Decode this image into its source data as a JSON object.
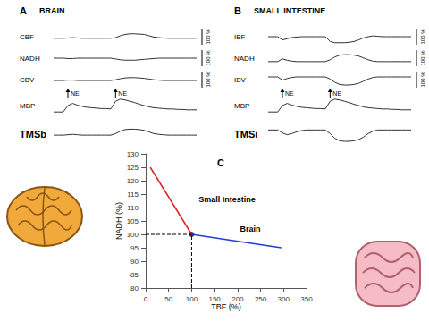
{
  "chart_data": [
    {
      "type": "line",
      "panel": "A",
      "title": "BRAIN",
      "tick_labels": false,
      "x": [
        0,
        1,
        2,
        3,
        4,
        5,
        6,
        7,
        8,
        9,
        10,
        11,
        12,
        13,
        14,
        15,
        16,
        17,
        18,
        19,
        20,
        21,
        22,
        23,
        24,
        25,
        26,
        27,
        28,
        29,
        30
      ],
      "xlim": [
        0,
        30
      ],
      "annotations": [
        {
          "text": "NE",
          "x": 3
        },
        {
          "text": "NE",
          "x": 13
        }
      ],
      "series": [
        {
          "name": "CBF",
          "color": "#333333",
          "scale_label": "100 %",
          "ylim": [
            -20,
            30
          ],
          "values": [
            0,
            0,
            0,
            1,
            2,
            1,
            0,
            0,
            0,
            0,
            0,
            0,
            0,
            2,
            8,
            12,
            14,
            14,
            13,
            12,
            8,
            4,
            2,
            1,
            0,
            0,
            0,
            0,
            0,
            0,
            0
          ]
        },
        {
          "name": "NADH",
          "color": "#333333",
          "scale_label": "100 %",
          "ylim": [
            -20,
            20
          ],
          "values": [
            0,
            0,
            0,
            -1,
            -1,
            0,
            0,
            0,
            0,
            0,
            0,
            0,
            0,
            -2,
            -4,
            -5,
            -5,
            -5,
            -4,
            -3,
            -2,
            -1,
            0,
            0,
            0,
            0,
            0,
            0,
            0,
            0,
            0
          ]
        },
        {
          "name": "CBV",
          "color": "#333333",
          "scale_label": "100 %",
          "ylim": [
            -20,
            25
          ],
          "values": [
            0,
            0,
            0,
            1,
            1,
            0,
            0,
            0,
            0,
            0,
            0,
            0,
            0,
            2,
            5,
            7,
            8,
            8,
            7,
            6,
            4,
            2,
            1,
            0,
            0,
            0,
            0,
            0,
            0,
            0,
            0
          ]
        },
        {
          "name": "MBP",
          "color": "#333333",
          "ylim": [
            -10,
            40
          ],
          "values": [
            0,
            0,
            0,
            15,
            20,
            16,
            13,
            11,
            10,
            9,
            8,
            8,
            7,
            25,
            30,
            28,
            25,
            22,
            18,
            15,
            12,
            10,
            9,
            8,
            7,
            7,
            6,
            6,
            5,
            5,
            5
          ]
        },
        {
          "name": "TMSb",
          "color": "#333333",
          "ylim": [
            -20,
            25
          ],
          "values": [
            0,
            0,
            0,
            1,
            2,
            1,
            0,
            0,
            0,
            0,
            0,
            0,
            0,
            4,
            10,
            14,
            15,
            15,
            14,
            12,
            8,
            4,
            2,
            1,
            0,
            0,
            0,
            0,
            0,
            0,
            0
          ]
        }
      ]
    },
    {
      "type": "line",
      "panel": "B",
      "title": "SMALL INTESTINE",
      "tick_labels": false,
      "x": [
        0,
        1,
        2,
        3,
        4,
        5,
        6,
        7,
        8,
        9,
        10,
        11,
        12,
        13,
        14,
        15,
        16,
        17,
        18,
        19,
        20,
        21,
        22,
        23,
        24,
        25,
        26,
        27,
        28,
        29,
        30
      ],
      "xlim": [
        0,
        30
      ],
      "annotations": [
        {
          "text": "NE",
          "x": 3
        },
        {
          "text": "NE",
          "x": 13
        }
      ],
      "series": [
        {
          "name": "IBF",
          "color": "#333333",
          "scale_label": "100 %",
          "ylim": [
            -20,
            20
          ],
          "values": [
            0,
            0,
            0,
            -8,
            -5,
            -2,
            -1,
            0,
            0,
            0,
            0,
            0,
            0,
            -12,
            -15,
            -15,
            -15,
            -14,
            -12,
            -8,
            -3,
            0,
            2,
            1,
            0,
            0,
            0,
            0,
            0,
            0,
            0
          ]
        },
        {
          "name": "NADH",
          "color": "#333333",
          "scale_label": "100 %",
          "ylim": [
            -10,
            25
          ],
          "values": [
            0,
            0,
            0,
            6,
            3,
            1,
            0,
            0,
            0,
            0,
            0,
            0,
            0,
            4,
            10,
            14,
            15,
            15,
            14,
            12,
            8,
            4,
            1,
            0,
            0,
            0,
            0,
            0,
            0,
            0,
            0
          ]
        },
        {
          "name": "IBV",
          "color": "#333333",
          "scale_label": "100 %",
          "ylim": [
            -20,
            10
          ],
          "values": [
            0,
            0,
            0,
            -6,
            -3,
            -1,
            0,
            0,
            0,
            0,
            0,
            0,
            0,
            -4,
            -10,
            -14,
            -15,
            -15,
            -14,
            -12,
            -8,
            -4,
            -1,
            0,
            0,
            0,
            0,
            0,
            0,
            0,
            0
          ]
        },
        {
          "name": "MBP",
          "color": "#333333",
          "ylim": [
            -10,
            40
          ],
          "values": [
            0,
            0,
            0,
            15,
            20,
            16,
            13,
            11,
            10,
            9,
            8,
            8,
            7,
            25,
            30,
            28,
            25,
            22,
            18,
            15,
            12,
            10,
            9,
            8,
            7,
            7,
            6,
            6,
            5,
            5,
            5
          ]
        },
        {
          "name": "TMSi",
          "color": "#333333",
          "ylim": [
            -22,
            8
          ],
          "values": [
            0,
            0,
            0,
            -5,
            -8,
            -6,
            -3,
            -1,
            0,
            0,
            0,
            0,
            0,
            -6,
            -14,
            -18,
            -19,
            -19,
            -18,
            -16,
            -12,
            -6,
            -2,
            0,
            0,
            0,
            0,
            0,
            0,
            0,
            0
          ]
        }
      ]
    },
    {
      "type": "line",
      "panel": "C",
      "xlabel": "TBF (%)",
      "ylabel": "NADH (%)",
      "xlim": [
        0,
        350
      ],
      "xticks": [
        0,
        50,
        100,
        150,
        200,
        250,
        300,
        350
      ],
      "ylim": [
        80,
        130
      ],
      "yticks": [
        80,
        85,
        90,
        95,
        100,
        105,
        110,
        115,
        120,
        125,
        130
      ],
      "grid": false,
      "series": [
        {
          "name": "Small Intestine",
          "color": "#e02020",
          "x": [
            10,
            100
          ],
          "values": [
            125,
            100
          ],
          "label_at": [
            115,
            113
          ]
        },
        {
          "name": "Brain",
          "color": "#1f3fcf",
          "x": [
            100,
            295
          ],
          "values": [
            100,
            95
          ],
          "label_at": [
            205,
            102
          ]
        }
      ],
      "reference_point": {
        "x": 100,
        "y": 100,
        "color": "#000000",
        "marker": "circle",
        "line_style": "dashed"
      }
    }
  ]
}
